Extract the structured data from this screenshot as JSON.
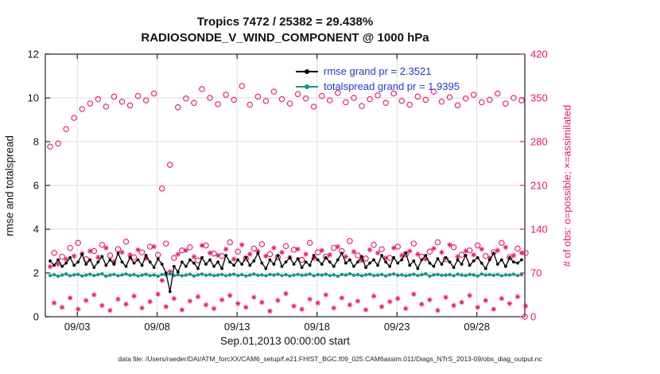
{
  "header": {
    "title_line1": "Tropics 7472 / 25382 = 29.438%",
    "title_line2": "RADIOSONDE_V_WIND_COMPONENT @ 1000 hPa"
  },
  "legend": {
    "items": [
      {
        "label": "rmse grand pr = 2.3521",
        "series": "rmse"
      },
      {
        "label": "totalspread grand pr = 1.9395",
        "series": "totalspread"
      }
    ]
  },
  "footer": {
    "data_file_note": "data file: /Users/raeder/DAI/ATM_forcXX/CAM6_setup/f.e21.FHIST_BGC.f09_025.CAM6assim.011/Diags_NTrS_2013-09/obs_diag_output.nc"
  },
  "chart_data": {
    "type": "line",
    "title": "Tropics 7472 / 25382 = 29.438%",
    "subtitle": "RADIOSONDE_V_WIND_COMPONENT @ 1000 hPa",
    "xlabel": "Sep.01,2013 00:00:00 start",
    "x_range": [
      0,
      30
    ],
    "x_ticks": [
      {
        "pos": 2,
        "label": "09/03"
      },
      {
        "pos": 7,
        "label": "09/08"
      },
      {
        "pos": 12,
        "label": "09/13"
      },
      {
        "pos": 17,
        "label": "09/18"
      },
      {
        "pos": 22,
        "label": "09/23"
      },
      {
        "pos": 27,
        "label": "09/28"
      }
    ],
    "left_axis": {
      "label": "rmse and totalspread",
      "range": [
        0,
        12
      ],
      "ticks": [
        0,
        2,
        4,
        6,
        8,
        10,
        12
      ]
    },
    "right_axis": {
      "label": "# of obs: o=possible; ×=assimilated",
      "range": [
        0,
        420
      ],
      "ticks": [
        0,
        70,
        140,
        210,
        280,
        350,
        420
      ]
    },
    "colors": {
      "obs": "#e5196b",
      "rmse": "#000000",
      "totalspread": "#12968a",
      "grid": "#dcdcdc",
      "box": "#222222",
      "legend_text": "#2434dd"
    },
    "series": [
      {
        "name": "rmse",
        "axis": "left",
        "marker": "dot",
        "color": "rmse",
        "x0": 0.3,
        "dx": 0.25,
        "values": [
          2.55,
          2.35,
          2.6,
          2.3,
          2.45,
          2.7,
          2.35,
          2.5,
          2.85,
          2.4,
          2.6,
          2.25,
          2.5,
          2.75,
          2.35,
          2.6,
          2.4,
          2.9,
          2.5,
          2.3,
          2.7,
          2.45,
          2.6,
          2.35,
          2.8,
          2.5,
          2.25,
          2.65,
          2.4,
          2.0,
          1.15,
          2.3,
          2.05,
          2.5,
          2.3,
          2.6,
          2.45,
          2.2,
          2.7,
          2.4,
          2.6,
          2.3,
          2.5,
          2.2,
          2.8,
          2.5,
          2.35,
          2.6,
          2.4,
          2.7,
          2.35,
          2.55,
          2.9,
          2.45,
          2.2,
          2.6,
          2.4,
          2.8,
          2.3,
          2.5,
          2.7,
          2.4,
          2.65,
          2.25,
          2.5,
          2.35,
          2.8,
          2.6,
          2.4,
          2.7,
          2.5,
          2.3,
          2.6,
          2.9,
          2.45,
          2.6,
          2.3,
          2.5,
          2.75,
          2.25,
          2.45,
          2.6,
          2.35,
          2.8,
          2.5,
          2.3,
          2.7,
          2.45,
          2.6,
          2.9,
          2.35,
          2.55,
          2.2,
          2.6,
          2.8,
          2.45,
          2.3,
          2.65,
          2.4,
          2.7,
          2.5,
          2.25,
          2.6,
          2.4,
          2.8,
          2.35,
          2.55,
          2.7,
          2.45,
          2.2,
          2.6,
          2.9,
          2.4,
          2.6,
          2.3,
          2.7,
          2.5,
          2.45,
          2.6
        ]
      },
      {
        "name": "totalspread",
        "axis": "left",
        "marker": "dot",
        "color": "totalspread",
        "x0": 0.3,
        "dx": 0.25,
        "values": [
          1.88,
          1.92,
          1.85,
          1.9,
          1.95,
          1.87,
          1.91,
          1.93,
          1.86,
          1.9,
          1.94,
          1.88,
          1.92,
          1.96,
          1.85,
          1.9,
          1.93,
          1.87,
          1.91,
          1.95,
          1.89,
          1.92,
          1.86,
          1.9,
          1.94,
          1.88,
          1.91,
          1.85,
          1.93,
          1.9,
          1.96,
          1.88,
          1.92,
          1.87,
          1.9,
          1.94,
          1.86,
          1.91,
          1.95,
          1.89,
          1.92,
          1.88,
          1.9,
          1.93,
          1.87,
          1.91,
          1.94,
          1.88,
          1.92,
          1.86,
          1.9,
          1.95,
          1.89,
          1.91,
          1.87,
          1.93,
          1.9,
          1.94,
          1.88,
          1.92,
          1.86,
          1.9,
          1.93,
          1.89,
          1.91,
          1.95,
          1.87,
          1.92,
          1.9,
          1.94,
          1.88,
          1.91,
          1.85,
          1.93,
          1.9,
          1.96,
          1.89,
          1.92,
          1.87,
          1.91,
          1.94,
          1.88,
          1.9,
          1.93,
          1.86,
          1.92,
          1.95,
          1.89,
          1.91,
          1.87,
          1.9,
          1.94,
          1.88,
          1.92,
          1.96,
          1.85,
          1.91,
          1.93,
          1.89,
          1.9,
          1.92,
          1.87,
          1.94,
          1.9,
          1.88,
          1.93,
          1.91,
          1.86,
          1.95,
          1.9,
          1.92,
          1.89,
          1.93,
          1.87,
          1.91,
          1.9,
          1.94,
          1.88,
          1.92
        ]
      }
    ],
    "scatters": [
      {
        "name": "possible-major",
        "axis": "right",
        "marker": "circle",
        "color": "obs",
        "x0": 0.3,
        "dx": 0.5,
        "values": [
          272,
          277,
          300,
          318,
          332,
          341,
          348,
          336,
          352,
          344,
          338,
          353,
          346,
          357,
          205,
          243,
          335,
          349,
          342,
          364,
          350,
          340,
          355,
          347,
          369,
          339,
          352,
          345,
          360,
          348,
          341,
          356,
          349,
          336,
          353,
          346,
          358,
          343,
          350,
          337,
          348,
          354,
          342,
          357,
          345,
          339,
          352,
          347,
          360,
          344,
          351,
          338,
          349,
          355,
          343,
          347,
          357,
          341,
          350,
          346
        ],
        "extra_points": [
          [
            30,
            0
          ]
        ]
      },
      {
        "name": "possible-minor",
        "axis": "right",
        "marker": "circle",
        "color": "obs",
        "x0": 0.55,
        "dx": 0.5,
        "values": [
          102,
          96,
          110,
          118,
          92,
          105,
          115,
          98,
          108,
          120,
          95,
          103,
          112,
          99,
          117,
          94,
          106,
          111,
          90,
          114,
          101,
          97,
          119,
          104,
          93,
          109,
          116,
          100,
          95,
          113,
          107,
          91,
          118,
          103,
          96,
          110,
          105,
          121,
          98,
          93,
          115,
          108,
          94,
          112,
          100,
          117,
          96,
          104,
          119,
          92,
          111,
          99,
          106,
          114,
          97,
          103,
          118,
          95,
          109,
          102
        ]
      },
      {
        "name": "assimilated-major",
        "axis": "right",
        "marker": "asterisk",
        "color": "obs",
        "x0": 0.3,
        "dx": 0.5,
        "values": [
          80,
          84,
          92,
          97,
          101,
          105,
          95,
          110,
          88,
          103,
          99,
          107,
          93,
          112,
          58,
          72,
          100,
          106,
          96,
          114,
          102,
          98,
          108,
          92,
          115,
          100,
          105,
          97,
          110,
          103,
          95,
          108,
          100,
          93,
          106,
          99,
          112,
          96,
          104,
          90,
          107,
          102,
          94,
          110,
          98,
          105,
          100,
          92,
          109,
          103,
          115,
          96,
          105,
          99,
          108,
          94,
          106,
          111,
          98,
          102
        ]
      },
      {
        "name": "assimilated-minor",
        "axis": "right",
        "marker": "asterisk",
        "color": "obs",
        "x0": 0.55,
        "dx": 0.5,
        "values": [
          22,
          15,
          30,
          12,
          26,
          35,
          18,
          10,
          28,
          20,
          33,
          14,
          24,
          36,
          16,
          29,
          11,
          25,
          32,
          19,
          13,
          27,
          34,
          21,
          15,
          31,
          23,
          9,
          26,
          37,
          17,
          12,
          28,
          22,
          35,
          14,
          30,
          19,
          25,
          11,
          33,
          16,
          24,
          29,
          13,
          36,
          20,
          27,
          10,
          31,
          18,
          23,
          34,
          15,
          26,
          12,
          29,
          21,
          32,
          17
        ]
      }
    ]
  }
}
